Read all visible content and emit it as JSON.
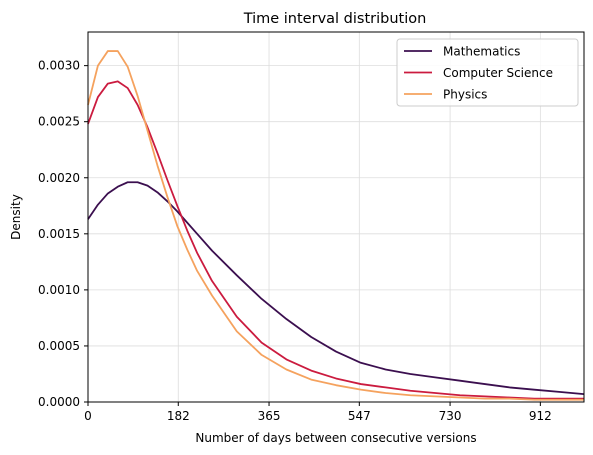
{
  "chart_data": {
    "type": "line",
    "title": "Time interval distribution",
    "xlabel": "Number of days between consecutive versions",
    "ylabel": "Density",
    "xlim": [
      0,
      1000
    ],
    "ylim": [
      0,
      0.0033
    ],
    "xticks": [
      0,
      182,
      365,
      547,
      730,
      912
    ],
    "xtick_labels": [
      "0",
      "182",
      "365",
      "547",
      "730",
      "912"
    ],
    "yticks": [
      0,
      0.0005,
      0.001,
      0.0015,
      0.002,
      0.0025,
      0.003
    ],
    "ytick_labels": [
      "0.0000",
      "0.0005",
      "0.0010",
      "0.0015",
      "0.0020",
      "0.0025",
      "0.0030"
    ],
    "grid": true,
    "legend_position": "top-right",
    "series": [
      {
        "name": "Mathematics",
        "color": "#3b0f4f",
        "x": [
          0,
          20,
          40,
          60,
          80,
          100,
          120,
          140,
          160,
          180,
          200,
          220,
          250,
          300,
          350,
          400,
          450,
          500,
          550,
          600,
          650,
          700,
          750,
          800,
          850,
          900,
          950,
          1000
        ],
        "y": [
          0.00163,
          0.00176,
          0.00186,
          0.00192,
          0.00196,
          0.00196,
          0.00193,
          0.00187,
          0.00179,
          0.0017,
          0.0016,
          0.0015,
          0.00135,
          0.00113,
          0.00092,
          0.00074,
          0.00058,
          0.00045,
          0.00035,
          0.00029,
          0.00025,
          0.00022,
          0.00019,
          0.00016,
          0.00013,
          0.00011,
          9e-05,
          7e-05
        ]
      },
      {
        "name": "Computer Science",
        "color": "#cb1b3f",
        "x": [
          0,
          20,
          40,
          60,
          80,
          100,
          120,
          140,
          160,
          180,
          200,
          220,
          250,
          300,
          350,
          400,
          450,
          500,
          550,
          600,
          650,
          700,
          750,
          800,
          850,
          900,
          950,
          1000
        ],
        "y": [
          0.00248,
          0.00272,
          0.00284,
          0.00286,
          0.0028,
          0.00265,
          0.00245,
          0.00222,
          0.00198,
          0.00175,
          0.00153,
          0.00133,
          0.00108,
          0.00076,
          0.00053,
          0.00038,
          0.00028,
          0.00021,
          0.00016,
          0.00013,
          0.0001,
          8e-05,
          6e-05,
          5e-05,
          4e-05,
          3e-05,
          3e-05,
          3e-05
        ]
      },
      {
        "name": "Physics",
        "color": "#f5a25e",
        "x": [
          0,
          20,
          40,
          60,
          80,
          100,
          120,
          140,
          160,
          180,
          200,
          220,
          250,
          300,
          350,
          400,
          450,
          500,
          550,
          600,
          650,
          700,
          750,
          800,
          850,
          900,
          950,
          1000
        ],
        "y": [
          0.00265,
          0.003,
          0.00313,
          0.00313,
          0.00299,
          0.00273,
          0.00242,
          0.00211,
          0.00183,
          0.00157,
          0.00136,
          0.00117,
          0.00095,
          0.00063,
          0.00042,
          0.00029,
          0.0002,
          0.00015,
          0.00011,
          8e-05,
          6e-05,
          5e-05,
          4e-05,
          3e-05,
          3e-05,
          2e-05,
          2e-05,
          2e-05
        ]
      }
    ]
  }
}
